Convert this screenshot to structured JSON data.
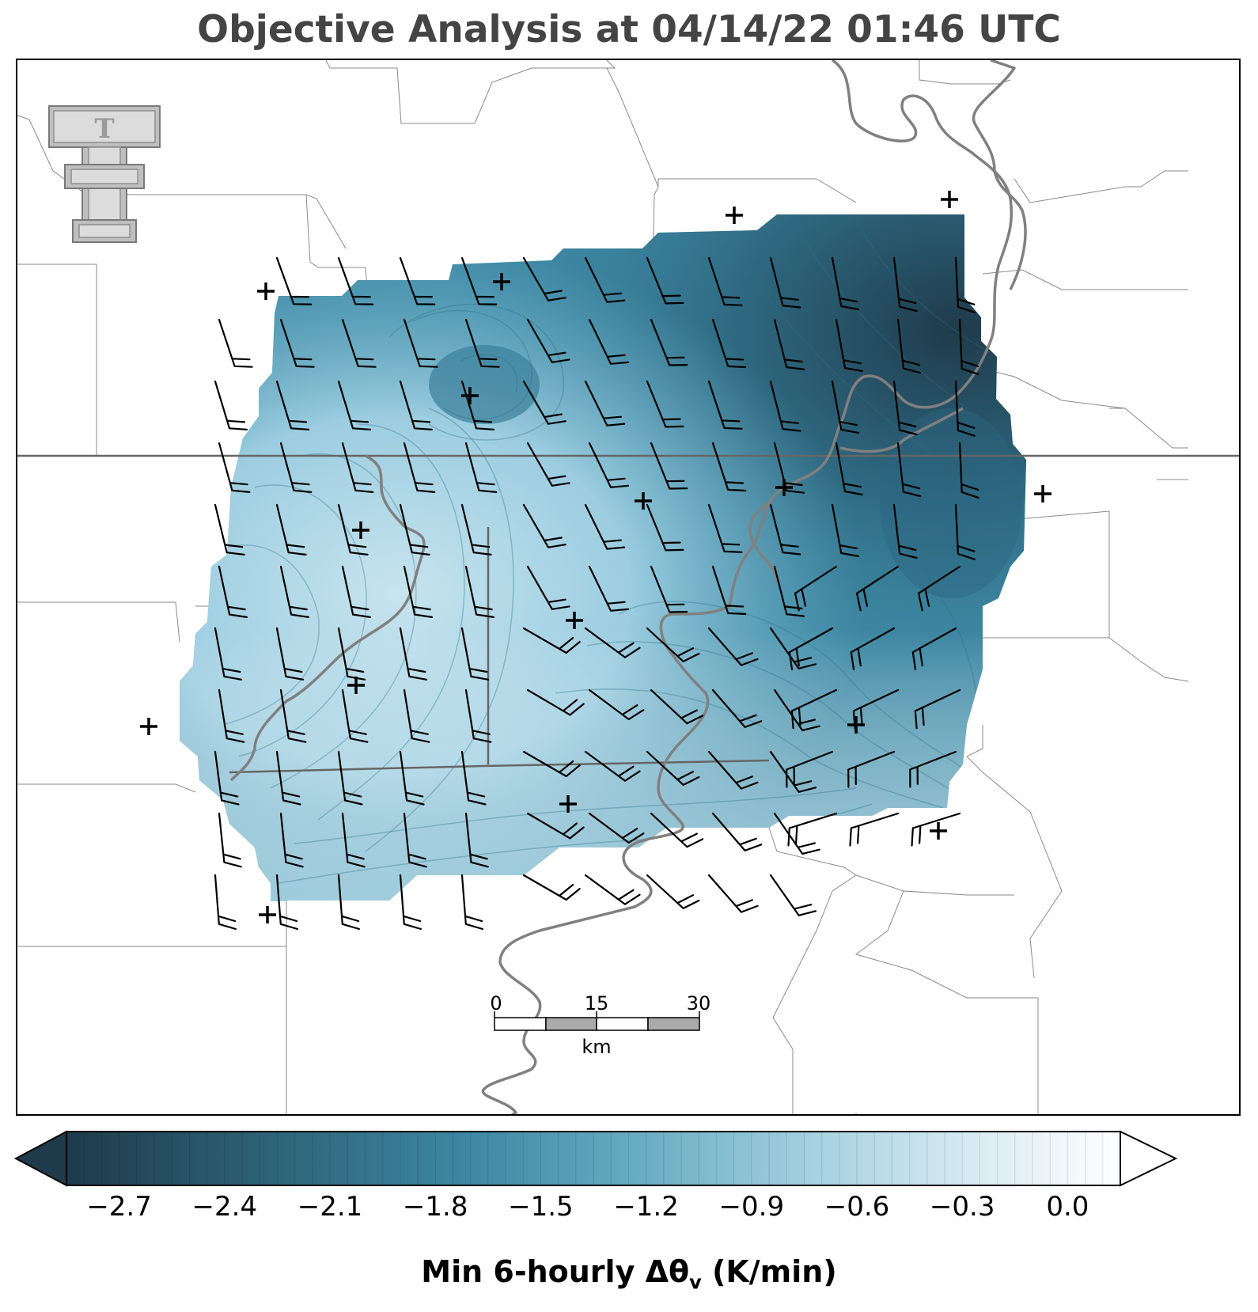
{
  "title": "Objective Analysis at 04/14/22 01:46 UTC",
  "logo_text": "T",
  "scale_bar": {
    "labels": [
      "0",
      "15",
      "30"
    ],
    "unit": "km"
  },
  "colorbar": {
    "label_prefix": "Min 6-hourly Δθ",
    "label_sub": "v",
    "label_suffix": " (K/min)",
    "ticks": [
      "−2.7",
      "−2.4",
      "−2.1",
      "−1.8",
      "−1.5",
      "−1.2",
      "−0.9",
      "−0.6",
      "−0.3",
      "0.0"
    ],
    "range": [
      -2.85,
      0.15
    ],
    "extend": "both"
  },
  "colors": {
    "darkest": "#1f3b4b",
    "dark": "#2f6b83",
    "mid": "#3f8aa6",
    "light": "#8cc3d5",
    "lightest": "#f4f9fb",
    "state_line": "#666666",
    "river": "#808080",
    "barb": "#000000"
  }
}
